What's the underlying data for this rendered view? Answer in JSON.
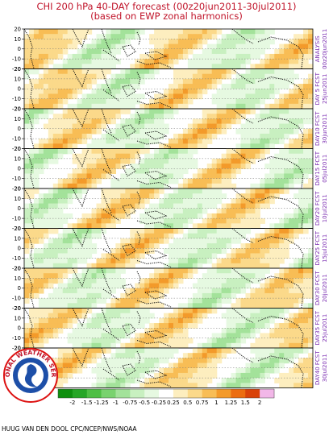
{
  "title": {
    "line1": "CHI 200 hPa 40-DAY forecast (00z20jun2011-30jul2011)",
    "line2": "(based on EWP zonal harmonics)"
  },
  "latitude_ticks": [
    "20",
    "10",
    "0",
    "-10",
    "-20"
  ],
  "panels": [
    {
      "label_line1": "ANALYSIS",
      "label_line2": "00z20jun2011",
      "phase": 0.0
    },
    {
      "label_line1": "DAY 5 FCST",
      "label_line2": "25jun2011",
      "phase": 0.04
    },
    {
      "label_line1": "DAY10 FCST",
      "label_line2": "30jun2011",
      "phase": 0.09
    },
    {
      "label_line1": "DAY15 FCST",
      "label_line2": "05jul2011",
      "phase": 0.14
    },
    {
      "label_line1": "DAY20 FCST",
      "label_line2": "10jul2011",
      "phase": 0.19
    },
    {
      "label_line1": "DAY25 FCST",
      "label_line2": "15jul2011",
      "phase": 0.24
    },
    {
      "label_line1": "DAY30 FCST",
      "label_line2": "20jul2011",
      "phase": 0.29
    },
    {
      "label_line1": "DAY35 FCST",
      "label_line2": "25jul2011",
      "phase": 0.34
    },
    {
      "label_line1": "DAY40 FCST",
      "label_line2": "30jul2011",
      "phase": 0.39
    }
  ],
  "colorbar": {
    "labels": [
      "-2",
      "-1.5",
      "-1.25",
      "-1",
      "-0.75",
      "-0.5",
      "-0.25",
      "0.25",
      "0.5",
      "0.75",
      "1",
      "1.25",
      "1.5",
      "2"
    ],
    "colors": [
      "#0f8f0f",
      "#27a627",
      "#4fbf45",
      "#79d26e",
      "#a3e29a",
      "#c8f0c0",
      "#e6f9e1",
      "#ffffff",
      "#fdeebf",
      "#fbd98a",
      "#f8bd55",
      "#f39a2a",
      "#ec6d10",
      "#d9430a",
      "#f2b7e8"
    ]
  },
  "credit": "HUUG VAN DEN DOOL CPC/NCEP/NWS/NOAA",
  "logo": {
    "text": "NATIONAL WEATHER SERVICE"
  }
}
